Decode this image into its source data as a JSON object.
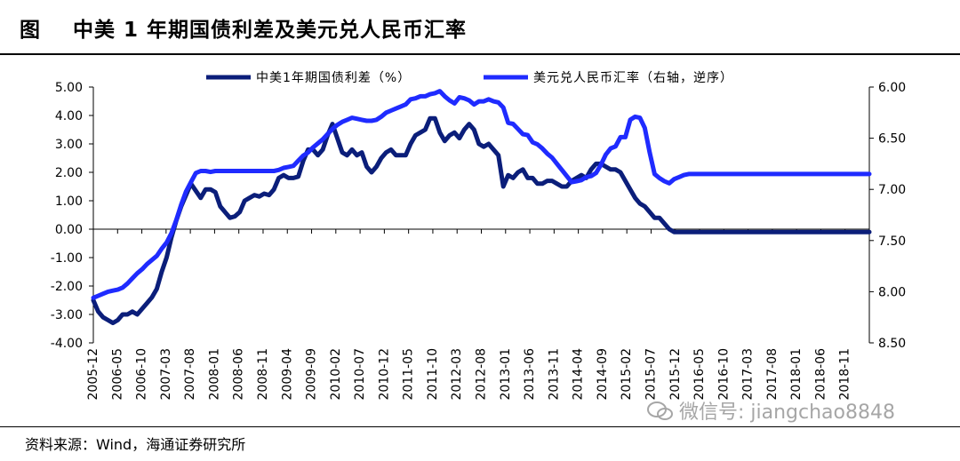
{
  "header": {
    "title": "图    中美 1 年期国债利差及美元兑人民币汇率"
  },
  "footer": {
    "source": "资料来源：Wind，海通证券研究所",
    "watermark": "微信号: jiangchao8848"
  },
  "colors": {
    "spread": "#0b1e7a",
    "fx": "#1f2bff",
    "axis": "#000000"
  },
  "chart_data": {
    "type": "line",
    "title": "",
    "legend_position": "top",
    "grid": false,
    "left_axis": {
      "ylim": [
        -4,
        5
      ],
      "ticks": [
        "5.00",
        "4.00",
        "3.00",
        "2.00",
        "1.00",
        "0.00",
        "-1.00",
        "-2.00",
        "-3.00",
        "-4.00"
      ],
      "tick_values": [
        5,
        4,
        3,
        2,
        1,
        0,
        -1,
        -2,
        -3,
        -4
      ]
    },
    "right_axis": {
      "ylim": [
        6.0,
        8.5
      ],
      "inverted": true,
      "ticks": [
        "6.00",
        "6.50",
        "7.00",
        "7.50",
        "8.00",
        "8.50"
      ],
      "tick_values": [
        6.0,
        6.5,
        7.0,
        7.5,
        8.0,
        8.5
      ]
    },
    "x_ticks": [
      "2005-12",
      "2006-05",
      "2006-10",
      "2007-03",
      "2007-08",
      "2008-01",
      "2008-06",
      "2008-11",
      "2009-04",
      "2009-09",
      "2010-02",
      "2010-07",
      "2010-12",
      "2011-05",
      "2011-10",
      "2012-03",
      "2012-08",
      "2013-01",
      "2013-06",
      "2013-11",
      "2014-04",
      "2014-09",
      "2015-02",
      "2015-07",
      "2015-12",
      "2016-05",
      "2016-10",
      "2017-03",
      "2017-08",
      "2018-01",
      "2018-06",
      "2018-11"
    ],
    "series": [
      {
        "name": "中美1年期国债利差（%）",
        "axis": "left",
        "x": [
          0,
          1,
          2,
          3,
          4,
          5,
          6,
          7,
          8,
          9,
          10,
          11,
          12,
          13,
          14,
          15,
          16,
          17,
          18,
          19,
          20,
          21,
          22,
          23,
          24,
          25,
          26,
          27,
          28,
          29,
          30,
          31,
          32,
          33,
          34,
          35,
          36,
          37,
          38,
          39,
          40,
          41,
          42,
          43,
          44,
          45,
          46,
          47,
          48,
          49,
          50,
          51,
          52,
          53,
          54,
          55,
          56,
          57,
          58,
          59,
          60,
          61,
          62,
          63,
          64,
          65,
          66,
          67,
          68,
          69,
          70,
          71,
          72,
          73,
          74,
          75,
          76,
          77,
          78,
          79,
          80,
          81,
          82,
          83,
          84,
          85,
          86,
          87,
          88,
          89,
          90,
          91,
          92,
          93,
          94,
          95,
          96,
          97,
          98,
          99,
          100,
          101,
          102,
          103,
          104,
          105,
          106,
          107,
          108,
          109,
          110,
          111,
          112,
          113,
          114,
          115,
          116,
          117,
          118,
          119,
          120,
          121,
          122,
          123,
          124,
          125,
          126,
          127,
          128,
          129,
          130,
          131,
          132,
          133,
          134,
          135,
          136,
          137,
          138,
          139,
          140,
          141,
          142,
          143,
          144,
          145,
          146,
          147,
          148,
          149,
          150,
          151,
          152,
          153,
          154,
          155,
          156,
          157,
          158,
          159
        ],
        "values": [
          -2.5,
          -2.9,
          -3.1,
          -3.2,
          -3.3,
          -3.2,
          -3.0,
          -3.0,
          -2.9,
          -3.0,
          -2.8,
          -2.6,
          -2.4,
          -2.1,
          -1.5,
          -1.0,
          -0.3,
          0.3,
          0.8,
          1.2,
          1.6,
          1.35,
          1.1,
          1.4,
          1.4,
          1.3,
          0.8,
          0.6,
          0.4,
          0.45,
          0.6,
          1.0,
          1.1,
          1.2,
          1.15,
          1.25,
          1.2,
          1.4,
          1.8,
          1.9,
          1.8,
          1.8,
          1.85,
          2.4,
          2.8,
          2.8,
          2.6,
          2.8,
          3.3,
          3.7,
          3.2,
          2.7,
          2.6,
          2.8,
          2.6,
          2.7,
          2.2,
          2.0,
          2.2,
          2.5,
          2.7,
          2.8,
          2.6,
          2.6,
          2.6,
          3.0,
          3.3,
          3.4,
          3.5,
          3.9,
          3.9,
          3.4,
          3.1,
          3.3,
          3.4,
          3.2,
          3.5,
          3.7,
          3.5,
          3.0,
          2.9,
          3.0,
          2.8,
          2.6,
          1.5,
          1.9,
          1.8,
          2.0,
          2.1,
          1.8,
          1.8,
          1.6,
          1.6,
          1.7,
          1.7,
          1.6,
          1.5,
          1.5,
          1.7,
          1.8,
          1.9,
          1.8,
          2.1,
          2.3,
          2.3,
          2.2,
          2.1,
          2.1,
          2.0,
          1.7,
          1.4,
          1.1,
          0.9,
          0.8,
          0.6,
          0.4,
          0.4,
          0.2,
          0.0,
          -0.1,
          -0.1,
          -0.1,
          -0.1,
          -0.1,
          -0.1,
          -0.1,
          -0.1,
          -0.1,
          -0.1,
          -0.1,
          -0.1,
          -0.1,
          -0.1,
          -0.1,
          -0.1,
          -0.1,
          -0.1,
          -0.1,
          -0.1,
          -0.1,
          -0.1,
          -0.1,
          -0.1,
          -0.1,
          -0.1,
          -0.1,
          -0.1,
          -0.1,
          -0.1,
          -0.1,
          -0.1,
          -0.1,
          -0.1,
          -0.1,
          -0.1,
          -0.1,
          -0.1,
          -0.1,
          -0.1,
          -0.1
        ]
      },
      {
        "name": "美元兑人民币汇率（右轴，逆序）",
        "axis": "right",
        "x": [
          0,
          1,
          2,
          3,
          4,
          5,
          6,
          7,
          8,
          9,
          10,
          11,
          12,
          13,
          14,
          15,
          16,
          17,
          18,
          19,
          20,
          21,
          22,
          23,
          24,
          25,
          26,
          27,
          28,
          29,
          30,
          31,
          32,
          33,
          34,
          35,
          36,
          37,
          38,
          39,
          40,
          41,
          42,
          43,
          44,
          45,
          46,
          47,
          48,
          49,
          50,
          51,
          52,
          53,
          54,
          55,
          56,
          57,
          58,
          59,
          60,
          61,
          62,
          63,
          64,
          65,
          66,
          67,
          68,
          69,
          70,
          71,
          72,
          73,
          74,
          75,
          76,
          77,
          78,
          79,
          80,
          81,
          82,
          83,
          84,
          85,
          86,
          87,
          88,
          89,
          90,
          91,
          92,
          93,
          94,
          95,
          96,
          97,
          98,
          99,
          100,
          101,
          102,
          103,
          104,
          105,
          106,
          107,
          108,
          109,
          110,
          111,
          112,
          113,
          114,
          115,
          116,
          117,
          118,
          119,
          120,
          121,
          122,
          123,
          124,
          125,
          126,
          127,
          128,
          129,
          130,
          131,
          132,
          133,
          134,
          135,
          136,
          137,
          138,
          139,
          140,
          141,
          142,
          143,
          144,
          145,
          146,
          147,
          148,
          149,
          150,
          151,
          152,
          153,
          154,
          155,
          156,
          157,
          158,
          159
        ],
        "values": [
          8.06,
          8.04,
          8.02,
          8.0,
          7.99,
          7.98,
          7.96,
          7.92,
          7.87,
          7.82,
          7.78,
          7.73,
          7.69,
          7.65,
          7.58,
          7.52,
          7.43,
          7.3,
          7.15,
          7.02,
          6.93,
          6.84,
          6.82,
          6.82,
          6.83,
          6.82,
          6.82,
          6.82,
          6.82,
          6.82,
          6.82,
          6.82,
          6.82,
          6.82,
          6.82,
          6.82,
          6.82,
          6.82,
          6.81,
          6.79,
          6.78,
          6.77,
          6.72,
          6.67,
          6.64,
          6.59,
          6.55,
          6.51,
          6.46,
          6.41,
          6.37,
          6.34,
          6.32,
          6.3,
          6.31,
          6.32,
          6.33,
          6.33,
          6.32,
          6.29,
          6.25,
          6.23,
          6.21,
          6.19,
          6.17,
          6.12,
          6.11,
          6.09,
          6.09,
          6.07,
          6.06,
          6.04,
          6.09,
          6.13,
          6.16,
          6.1,
          6.11,
          6.13,
          6.17,
          6.14,
          6.14,
          6.12,
          6.14,
          6.15,
          6.2,
          6.35,
          6.36,
          6.41,
          6.46,
          6.47,
          6.54,
          6.56,
          6.6,
          6.65,
          6.69,
          6.75,
          6.81,
          6.87,
          6.93,
          6.92,
          6.91,
          6.88,
          6.87,
          6.84,
          6.76,
          6.66,
          6.6,
          6.58,
          6.49,
          6.49,
          6.32,
          6.29,
          6.3,
          6.4,
          6.64,
          6.85,
          6.89,
          6.92,
          6.94,
          6.9,
          6.88,
          6.86,
          6.85,
          6.85,
          6.85,
          6.85,
          6.85,
          6.85,
          6.85,
          6.85,
          6.85,
          6.85,
          6.85,
          6.85,
          6.85,
          6.85,
          6.85,
          6.85,
          6.85,
          6.85,
          6.85,
          6.85,
          6.85,
          6.85,
          6.85,
          6.85,
          6.85,
          6.85,
          6.85,
          6.85,
          6.85,
          6.85,
          6.85,
          6.85,
          6.85,
          6.85,
          6.85,
          6.85,
          6.85,
          6.85
        ]
      }
    ]
  }
}
